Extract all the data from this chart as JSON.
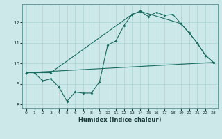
{
  "title": "",
  "xlabel": "Humidex (Indice chaleur)",
  "bg_color": "#cce8e8",
  "line_color": "#1a6b60",
  "grid_color": "#aad4d4",
  "xlim": [
    -0.5,
    23.5
  ],
  "ylim": [
    7.8,
    12.9
  ],
  "xticks": [
    0,
    1,
    2,
    3,
    4,
    5,
    6,
    7,
    8,
    9,
    10,
    11,
    12,
    13,
    14,
    15,
    16,
    17,
    18,
    19,
    20,
    21,
    22,
    23
  ],
  "yticks": [
    8,
    9,
    10,
    11,
    12
  ],
  "line1_x": [
    0,
    1,
    2,
    3,
    4,
    5,
    6,
    7,
    8,
    9,
    10,
    11,
    12,
    13,
    14,
    15,
    16,
    17,
    18,
    19,
    20,
    21,
    22,
    23
  ],
  "line1_y": [
    9.55,
    9.55,
    9.15,
    9.25,
    8.85,
    8.15,
    8.6,
    8.55,
    8.55,
    9.1,
    10.9,
    11.1,
    11.85,
    12.4,
    12.55,
    12.3,
    12.5,
    12.35,
    12.4,
    11.95,
    11.5,
    11.0,
    10.4,
    10.05
  ],
  "line2_x": [
    0,
    23
  ],
  "line2_y": [
    9.55,
    10.05
  ],
  "line3_x": [
    0,
    3,
    13,
    14,
    19,
    20,
    21,
    22,
    23
  ],
  "line3_y": [
    9.55,
    9.55,
    12.4,
    12.55,
    11.95,
    11.5,
    11.0,
    10.4,
    10.05
  ],
  "xlabel_fontsize": 6,
  "tick_fontsize": 4.5,
  "linewidth": 0.8,
  "markersize": 2.0
}
